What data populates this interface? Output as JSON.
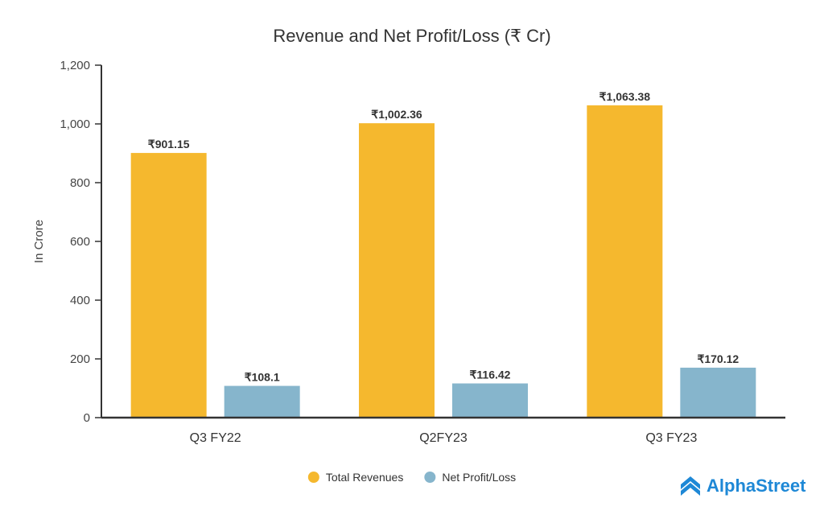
{
  "chart_data": {
    "type": "bar",
    "title": "Revenue and Net Profit/Loss (₹ Cr)",
    "ylabel": "In Crore",
    "xlabel": "",
    "ylim": [
      0,
      1200
    ],
    "yticks": [
      0,
      200,
      400,
      600,
      800,
      1000,
      1200
    ],
    "ytick_labels": [
      "0",
      "200",
      "400",
      "600",
      "800",
      "1,000",
      "1,200"
    ],
    "categories": [
      "Q3 FY22",
      "Q2FY23",
      "Q3 FY23"
    ],
    "series": [
      {
        "name": "Total Revenues",
        "color": "#f5b82e",
        "values": [
          901.15,
          1002.36,
          1063.38
        ],
        "labels": [
          "₹901.15",
          "₹1,002.36",
          "₹1,063.38"
        ]
      },
      {
        "name": "Net Profit/Loss",
        "color": "#86b5cc",
        "values": [
          108.1,
          116.42,
          170.12
        ],
        "labels": [
          "₹108.1",
          "₹116.42",
          "₹170.12"
        ]
      }
    ],
    "legend_position": "bottom-center",
    "grid": false
  },
  "brand": {
    "name": "AlphaStreet",
    "color": "#1e88d6",
    "icon": "alphastreet-logo-icon"
  }
}
